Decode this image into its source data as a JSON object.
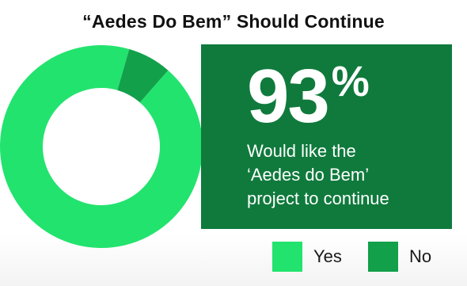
{
  "chart_data": {
    "type": "pie",
    "title": "“Aedes Do Bem” Should Continue",
    "categories": [
      "Yes",
      "No"
    ],
    "values": [
      93,
      7
    ],
    "colors": [
      "#22e36e",
      "#12a04a"
    ],
    "legend": "bottom-right",
    "donut": true
  },
  "callout": {
    "value": "93",
    "unit": "%",
    "lines": [
      "Would like the",
      "‘Aedes do Bem’",
      "project to continue"
    ],
    "background": "#0f7a3c"
  },
  "legend_items": [
    {
      "label": "Yes",
      "color": "#22e36e"
    },
    {
      "label": "No",
      "color": "#12a04a"
    }
  ]
}
